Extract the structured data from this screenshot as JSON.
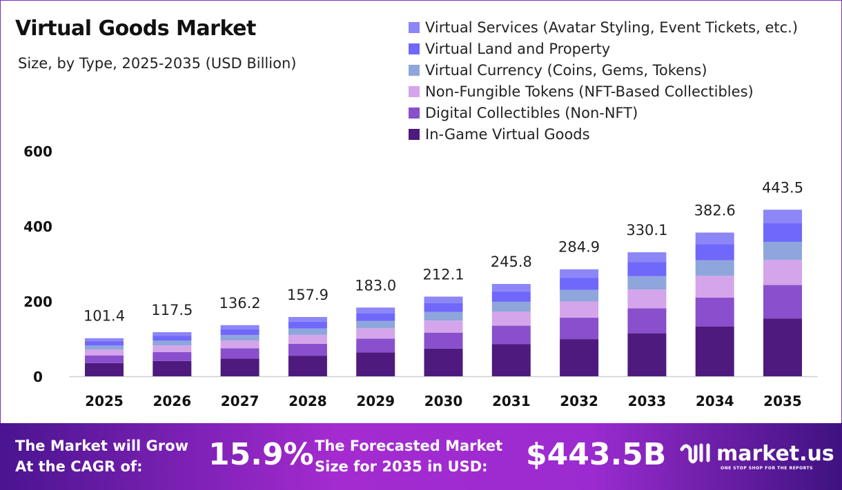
{
  "title": "Virtual Goods Market",
  "subtitle": "Size, by Type, 2025-2035 (USD Billion)",
  "footer": {
    "cagr_label_line1": "The Market will Grow",
    "cagr_label_line2": "At the CAGR of:",
    "cagr_value": "15.9%",
    "forecast_label_line1": "The Forecasted Market",
    "forecast_label_line2": "Size for 2035 in USD:",
    "forecast_value": "$443.5B",
    "logo_text": "market.us",
    "logo_tagline": "ONE STOP SHOP FOR THE REPORTS"
  },
  "chart_data": {
    "type": "bar",
    "stacked": true,
    "title": "Virtual Goods Market",
    "subtitle": "Size, by Type, 2025-2035 (USD Billion)",
    "categories": [
      "2025",
      "2026",
      "2027",
      "2028",
      "2029",
      "2030",
      "2031",
      "2032",
      "2033",
      "2034",
      "2035"
    ],
    "ylim": [
      0,
      600
    ],
    "yticks": [
      "0",
      "200",
      "400",
      "600"
    ],
    "grid": false,
    "legend_position": "top-right",
    "totals": [
      "101.4",
      "117.5",
      "136.2",
      "157.9",
      "183.0",
      "212.1",
      "245.8",
      "284.9",
      "330.1",
      "382.6",
      "443.5"
    ],
    "series": [
      {
        "name": "In-Game Virtual Goods",
        "color": "#4e1a7e",
        "values": [
          35.2,
          40.8,
          47.3,
          54.8,
          63.5,
          73.6,
          85.3,
          98.9,
          114.5,
          132.8,
          153.9
        ]
      },
      {
        "name": "Digital Collectibles (Non-NFT)",
        "color": "#8a4fcc",
        "values": [
          20.4,
          23.6,
          27.4,
          31.7,
          36.8,
          42.6,
          49.4,
          57.3,
          66.4,
          76.9,
          89.1
        ]
      },
      {
        "name": "Non-Fungible Tokens (NFT-Based Collectibles)",
        "color": "#d4a5ea",
        "values": [
          15.3,
          17.7,
          20.6,
          23.8,
          27.6,
          32.0,
          37.1,
          43.0,
          49.8,
          57.8,
          67.0
        ]
      },
      {
        "name": "Virtual Currency (Coins, Gems, Tokens)",
        "color": "#8ea6dc",
        "values": [
          11.0,
          12.7,
          14.7,
          17.1,
          19.8,
          22.9,
          26.5,
          30.8,
          35.7,
          41.3,
          47.9
        ]
      },
      {
        "name": "Virtual Land and Property",
        "color": "#7068fa",
        "values": [
          11.5,
          13.3,
          15.4,
          17.8,
          20.7,
          24.0,
          27.8,
          32.2,
          37.3,
          43.2,
          50.1
        ]
      },
      {
        "name": "Virtual Services (Avatar Styling, Event Tickets, etc.)",
        "color": "#8c86f7",
        "values": [
          8.0,
          9.4,
          10.8,
          12.7,
          14.6,
          17.0,
          19.7,
          22.7,
          26.4,
          30.6,
          35.5
        ]
      }
    ]
  }
}
